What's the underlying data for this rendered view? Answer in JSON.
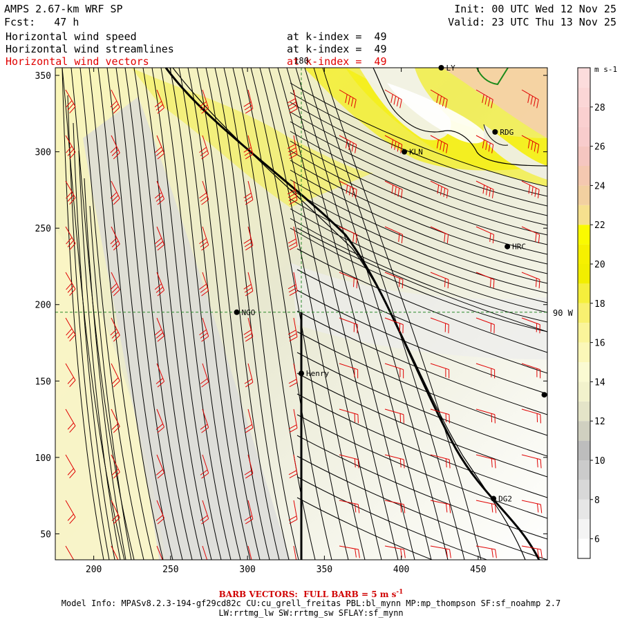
{
  "header": {
    "model": "AMPS 2.67-km WRF SP",
    "fcst": "Fcst:   47 h",
    "init": "Init: 00 UTC Wed 12 Nov 25",
    "valid": "Valid: 23 UTC Thu 13 Nov 25",
    "fields": [
      {
        "name": "Horizontal wind speed",
        "level": "at k-index =  49",
        "color": "#000000"
      },
      {
        "name": "Horizontal wind streamlines",
        "level": "at k-index =  49",
        "color": "#000000"
      },
      {
        "name": "Horizontal wind vectors",
        "level": "at k-index =  49",
        "color": "#e00000"
      }
    ]
  },
  "chart_data": {
    "type": "heatmap",
    "xlim": [
      175,
      495
    ],
    "ylim": [
      33,
      355
    ],
    "xticks": [
      200,
      250,
      300,
      350,
      400,
      450
    ],
    "yticks": [
      50,
      100,
      150,
      200,
      250,
      300,
      350
    ],
    "meridian_label": "180",
    "meridian_x": 335,
    "parallel_label": "90 W",
    "parallel_y": 195,
    "colorbar": {
      "unit": "m s-1",
      "levels": [
        5,
        6,
        7,
        8,
        9,
        10,
        11,
        12,
        13,
        14,
        15,
        16,
        17,
        18,
        19,
        20,
        21,
        22,
        23,
        24,
        25,
        26,
        27,
        28,
        29,
        30
      ],
      "colors": [
        "#ffffff",
        "#f4f4f4",
        "#e6e6e6",
        "#d8d8d8",
        "#cbcbcb",
        "#bdbdbd",
        "#d0d0c0",
        "#e4e4c8",
        "#f2f2cc",
        "#fafad2",
        "#fbf7b8",
        "#faf49a",
        "#f8f070",
        "#f5ef3c",
        "#f2ee00",
        "#f6f000",
        "#fafa00",
        "#f6e08e",
        "#f2d0a0",
        "#f4c8b0",
        "#f5c6c0",
        "#f8cccc",
        "#fad0d0",
        "#fbd6d6",
        "#fcdcdc"
      ],
      "tick_labels": [
        6,
        8,
        10,
        12,
        14,
        16,
        18,
        20,
        22,
        24,
        26,
        28
      ]
    },
    "stations": [
      {
        "name": "KLN",
        "x": 402,
        "y": 300
      },
      {
        "name": "RDG",
        "x": 461,
        "y": 313
      },
      {
        "name": "HRC",
        "x": 469,
        "y": 238
      },
      {
        "name": "NGO",
        "x": 293,
        "y": 195
      },
      {
        "name": "Henry",
        "x": 335,
        "y": 155
      },
      {
        "name": "DG2",
        "x": 460,
        "y": 73
      },
      {
        "name": "LY",
        "x": 426,
        "y": 355
      },
      {
        "name": "",
        "x": 493,
        "y": 141
      }
    ],
    "barb_note": "BARB VECTORS:  FULL BARB = 5 m s",
    "barb_note_sup": "-1"
  },
  "footer": {
    "line1": "Model Info: MPASv8.2.3-194-gf29cd82c CU:cu_grell_freitas PBL:bl_mynn MP:mp_thompson SF:sf_noahmp 2.7",
    "line2": "LW:rrtmg_lw SW:rrtmg_sw SFLAY:sf_mynn"
  }
}
